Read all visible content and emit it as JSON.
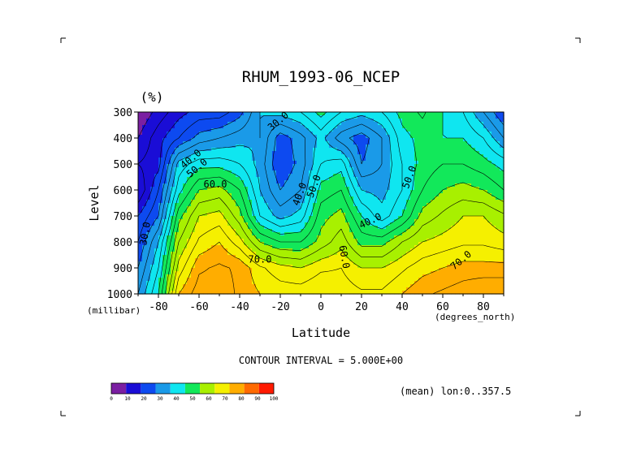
{
  "chart_data": {
    "type": "heatmap",
    "title": "RHUM_1993-06_NCEP",
    "units": "(%)",
    "xlabel": "Latitude",
    "ylabel": "Level",
    "x_units_label": "(degrees_north)",
    "y_units_label": "(millibar)",
    "x_range": [
      -90,
      90
    ],
    "y_range": [
      1000,
      300
    ],
    "x_ticks": [
      -80,
      -60,
      -40,
      -20,
      0,
      20,
      40,
      60,
      80
    ],
    "y_ticks": [
      300,
      400,
      500,
      600,
      700,
      800,
      900,
      1000
    ],
    "contour_interval_text": "CONTOUR INTERVAL = 5.000E+00",
    "mean_text": "(mean) lon:0..357.5",
    "contour_labels": [
      "30.0",
      "40.0",
      "50.0",
      "60.0",
      "70.0"
    ],
    "colorbar": {
      "ticks": [
        "0",
        "10",
        "20",
        "30",
        "40",
        "50",
        "60",
        "70",
        "80",
        "90",
        "100"
      ],
      "colors": [
        "#7b1fa2",
        "#1a0dd6",
        "#0d4af0",
        "#1a9ae8",
        "#0fe6f0",
        "#12e85a",
        "#a8f000",
        "#f5f000",
        "#ffad00",
        "#ff6a00",
        "#ff1a00"
      ]
    },
    "x": [
      -90,
      -80,
      -70,
      -60,
      -50,
      -40,
      -30,
      -20,
      -10,
      0,
      10,
      20,
      30,
      40,
      50,
      60,
      70,
      80,
      90
    ],
    "y": [
      300,
      400,
      500,
      600,
      700,
      800,
      900,
      1000
    ],
    "z": [
      [
        5,
        12,
        18,
        22,
        22,
        28,
        40,
        42,
        45,
        52,
        45,
        42,
        45,
        52,
        56,
        50,
        45,
        35,
        25
      ],
      [
        10,
        18,
        25,
        32,
        35,
        38,
        40,
        27,
        33,
        42,
        32,
        27,
        35,
        48,
        52,
        50,
        50,
        45,
        35
      ],
      [
        15,
        18,
        42,
        48,
        48,
        45,
        38,
        25,
        32,
        45,
        48,
        30,
        35,
        45,
        52,
        55,
        55,
        52,
        48
      ],
      [
        10,
        25,
        48,
        60,
        62,
        55,
        40,
        30,
        35,
        52,
        55,
        40,
        38,
        45,
        55,
        60,
        62,
        60,
        55
      ],
      [
        20,
        30,
        58,
        70,
        72,
        62,
        45,
        38,
        42,
        58,
        62,
        50,
        42,
        50,
        62,
        66,
        70,
        70,
        66
      ],
      [
        25,
        40,
        65,
        76,
        80,
        72,
        60,
        55,
        55,
        62,
        68,
        58,
        58,
        65,
        70,
        72,
        74,
        74,
        72
      ],
      [
        30,
        45,
        72,
        84,
        86,
        84,
        76,
        72,
        70,
        74,
        75,
        70,
        70,
        74,
        78,
        80,
        82,
        82,
        82
      ],
      [
        35,
        50,
        80,
        88,
        88,
        84,
        80,
        78,
        78,
        80,
        78,
        76,
        76,
        80,
        84,
        86,
        88,
        90,
        90
      ]
    ]
  }
}
